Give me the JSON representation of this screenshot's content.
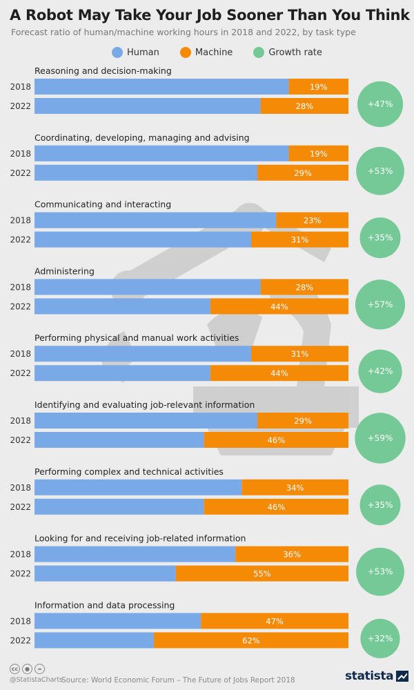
{
  "title": "A Robot May Take Your Job Sooner Than You Think",
  "subtitle": "Forecast ratio of human/machine working hours in 2018 and 2022, by task type",
  "colors": {
    "human": "#79a9e6",
    "machine": "#f58a07",
    "growth": "#74c996",
    "text": "#222222"
  },
  "legend": [
    {
      "label": "Human",
      "color": "#79a9e6"
    },
    {
      "label": "Machine",
      "color": "#f58a07"
    },
    {
      "label": "Growth rate",
      "color": "#74c996"
    }
  ],
  "chart_data": {
    "type": "bar",
    "stacked": true,
    "orientation": "horizontal",
    "series": [
      {
        "name": "Human"
      },
      {
        "name": "Machine"
      }
    ],
    "groups": [
      {
        "task": "Reasoning and decision-making",
        "rows": [
          {
            "year": "2018",
            "machine": 19,
            "label": "19%"
          },
          {
            "year": "2022",
            "machine": 28,
            "label": "28%"
          }
        ],
        "growth": 47,
        "growth_label": "+47%"
      },
      {
        "task": "Coordinating, developing, managing and advising",
        "rows": [
          {
            "year": "2018",
            "machine": 19,
            "label": "19%"
          },
          {
            "year": "2022",
            "machine": 29,
            "label": "29%"
          }
        ],
        "growth": 53,
        "growth_label": "+53%"
      },
      {
        "task": "Communicating and interacting",
        "rows": [
          {
            "year": "2018",
            "machine": 23,
            "label": "23%"
          },
          {
            "year": "2022",
            "machine": 31,
            "label": "31%"
          }
        ],
        "growth": 35,
        "growth_label": "+35%"
      },
      {
        "task": "Administering",
        "rows": [
          {
            "year": "2018",
            "machine": 28,
            "label": "28%"
          },
          {
            "year": "2022",
            "machine": 44,
            "label": "44%"
          }
        ],
        "growth": 57,
        "growth_label": "+57%"
      },
      {
        "task": "Performing physical and manual work activities",
        "rows": [
          {
            "year": "2018",
            "machine": 31,
            "label": "31%"
          },
          {
            "year": "2022",
            "machine": 44,
            "label": "44%"
          }
        ],
        "growth": 42,
        "growth_label": "+42%"
      },
      {
        "task": "Identifying and evaluating job-relevant information",
        "rows": [
          {
            "year": "2018",
            "machine": 29,
            "label": "29%"
          },
          {
            "year": "2022",
            "machine": 46,
            "label": "46%"
          }
        ],
        "growth": 59,
        "growth_label": "+59%"
      },
      {
        "task": "Performing complex and technical activities",
        "rows": [
          {
            "year": "2018",
            "machine": 34,
            "label": "34%"
          },
          {
            "year": "2022",
            "machine": 46,
            "label": "46%"
          }
        ],
        "growth": 35,
        "growth_label": "+35%"
      },
      {
        "task": "Looking for and receiving job-related information",
        "rows": [
          {
            "year": "2018",
            "machine": 36,
            "label": "36%"
          },
          {
            "year": "2022",
            "machine": 55,
            "label": "55%"
          }
        ],
        "growth": 53,
        "growth_label": "+53%"
      },
      {
        "task": "Information and data processing",
        "rows": [
          {
            "year": "2018",
            "machine": 47,
            "label": "47%"
          },
          {
            "year": "2022",
            "machine": 62,
            "label": "62%"
          }
        ],
        "growth": 32,
        "growth_label": "+32%"
      }
    ]
  },
  "footer": {
    "license_icons": [
      "cc-icon",
      "by-icon",
      "nd-icon"
    ],
    "handle": "@StatistaCharts",
    "source": "Source: World Economic Forum – The Future of Jobs Report 2018",
    "brand": "statista"
  }
}
